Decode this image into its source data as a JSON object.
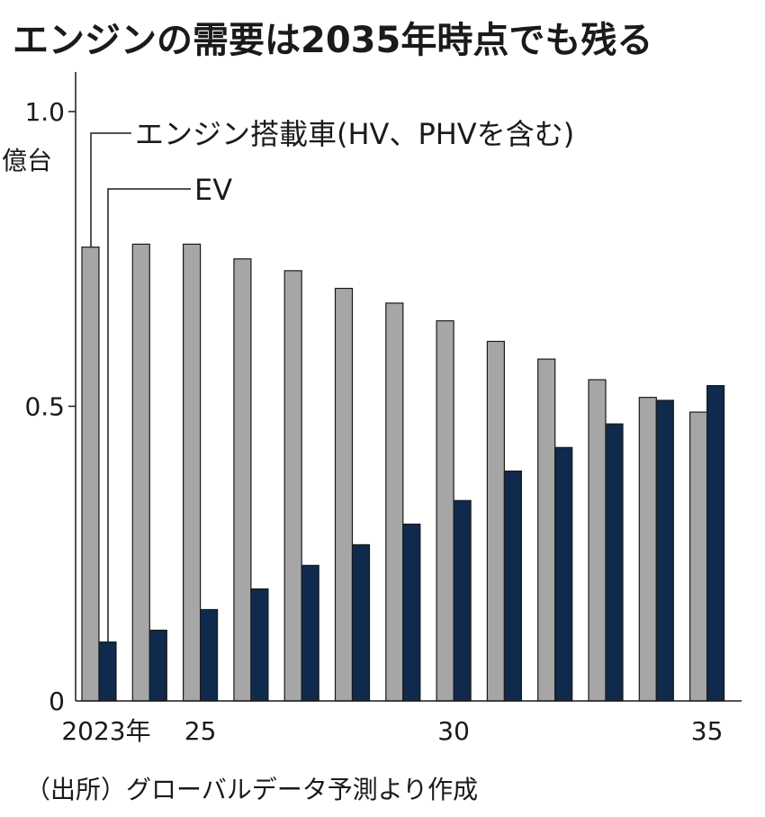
{
  "title": "エンジンの需要は2035年時点でも残る",
  "source": "（出所）グローバルデータ予測より作成",
  "colors": {
    "engine": "#a6a6a6",
    "ev": "#0f2a4c",
    "axis": "#1a1a1a"
  },
  "chart_data": {
    "type": "bar",
    "categories": [
      "2023",
      "2024",
      "2025",
      "2026",
      "2027",
      "2028",
      "2029",
      "2030",
      "2031",
      "2032",
      "2033",
      "2034",
      "2035"
    ],
    "x_tick_labels": [
      "2023年",
      "25",
      "30",
      "35"
    ],
    "x_tick_categories": [
      "2023",
      "2025",
      "2030",
      "2035"
    ],
    "y_unit": "億台",
    "ylim": [
      0,
      1.05
    ],
    "y_ticks": [
      0,
      0.5,
      1.0
    ],
    "y_tick_labels": [
      "0",
      "0.5",
      "1.0"
    ],
    "grid": false,
    "series": [
      {
        "name": "エンジン搭載車(HV、PHVを含む)",
        "values": [
          0.77,
          0.775,
          0.775,
          0.75,
          0.73,
          0.7,
          0.675,
          0.645,
          0.61,
          0.58,
          0.545,
          0.515,
          0.49
        ]
      },
      {
        "name": "EV",
        "values": [
          0.1,
          0.12,
          0.155,
          0.19,
          0.23,
          0.265,
          0.3,
          0.34,
          0.39,
          0.43,
          0.47,
          0.51,
          0.535
        ]
      }
    ]
  }
}
